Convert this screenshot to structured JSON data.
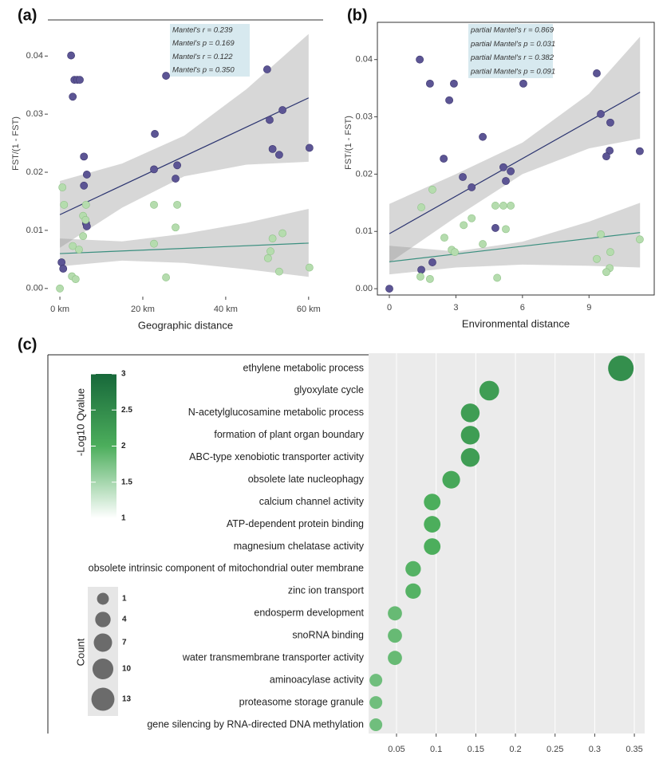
{
  "chart_data": [
    {
      "type": "scatter",
      "panel_label": "(a)",
      "x_label": "Geographic distance",
      "y_label": "FST/(1 - FST)",
      "xlim": [
        -2.9,
        63.5
      ],
      "ylim": [
        -0.0014,
        0.0458
      ],
      "xticks": [
        {
          "value": 0,
          "label": "0 km"
        },
        {
          "value": 20,
          "label": "20 km"
        },
        {
          "value": 40,
          "label": "40 km"
        },
        {
          "value": 60,
          "label": "60 km"
        }
      ],
      "yticks": [
        {
          "value": 0,
          "label": "0.00"
        },
        0.01,
        0.02,
        0.03,
        0.04
      ],
      "annotations": [
        {
          "text": "Mantel's r = 0.239",
          "color": "#2e3a6e"
        },
        {
          "text": "Mantel's p = 0.169",
          "color": "#2e3a6e"
        },
        {
          "text": "Mantel's r = 0.122",
          "color": "#5fae8a"
        },
        {
          "text": "Mantel's p = 0.350",
          "color": "#5fae8a"
        }
      ],
      "series": [
        {
          "color": "#5c5594",
          "x": [
            2.7,
            3.5,
            4.2,
            4.8,
            3.1,
            5.8,
            6.5,
            5.8,
            6.3,
            6.5,
            0.4,
            0.8,
            25.6,
            22.9,
            22.7,
            28.3,
            27.9,
            50,
            50.6,
            51.3,
            52.9,
            53.7,
            60.2
          ],
          "values": [
            0.0401,
            0.0359,
            0.0359,
            0.0359,
            0.033,
            0.0227,
            0.0196,
            0.0177,
            0.0112,
            0.0107,
            0.0045,
            0.0034,
            0.0366,
            0.0266,
            0.0205,
            0.0212,
            0.0189,
            0.0377,
            0.029,
            0.024,
            0.023,
            0.0307,
            0.0242
          ],
          "fit": {
            "color": "#2b3470",
            "x": [
              0,
              60
            ],
            "values": [
              0.0127,
              0.0328
            ]
          },
          "band": {
            "x": [
              0,
              15,
              30,
              45,
              60
            ],
            "lower": [
              0.007,
              0.0139,
              0.0193,
              0.0213,
              0.0218
            ],
            "upper": [
              0.0185,
              0.0215,
              0.0263,
              0.0343,
              0.0438
            ]
          }
        },
        {
          "color": "#b5dcae",
          "x": [
            0.6,
            1,
            0,
            3.1,
            2.9,
            3.8,
            4.6,
            5.6,
            6.2,
            5.6,
            6.3,
            22.7,
            22.7,
            25.6,
            27.9,
            28.3,
            50.2,
            50.8,
            51.3,
            52.9,
            53.7,
            60.2
          ],
          "values": [
            0.0174,
            0.0144,
            0,
            0.0073,
            0.0021,
            0.0016,
            0.0067,
            0.0125,
            0.0118,
            0.009,
            0.0144,
            0.0144,
            0.0077,
            0.0019,
            0.0105,
            0.0144,
            0.0052,
            0.0064,
            0.0086,
            0.0029,
            0.0095,
            0.0036
          ],
          "fit": {
            "color": "#3a8f7f",
            "x": [
              0,
              60
            ],
            "values": [
              0.006,
              0.0078
            ]
          },
          "band": {
            "x": [
              0,
              15,
              30,
              45,
              60
            ],
            "lower": [
              0.0038,
              0.0048,
              0.0044,
              0.0033,
              0.002
            ],
            "upper": [
              0.0086,
              0.0081,
              0.0094,
              0.0113,
              0.0137
            ]
          }
        }
      ]
    },
    {
      "type": "scatter",
      "panel_label": "(b)",
      "x_label": "Environmental distance",
      "y_label": "FST/(1 - FST)",
      "xlim": [
        -0.54,
        11.94
      ],
      "ylim": [
        -0.0011,
        0.0465
      ],
      "xticks": [
        0,
        3,
        6,
        9
      ],
      "yticks": [
        {
          "value": 0,
          "label": "0.00"
        },
        0.01,
        0.02,
        0.03,
        0.04
      ],
      "annotations": [
        {
          "text": "partial Mantel's r = 0.869",
          "color": "#2e3a6e"
        },
        {
          "text": "partial Mantel's p = 0.031",
          "color": "#2e3a6e"
        },
        {
          "text": "partial Mantel's r = 0.382",
          "color": "#5fae8a"
        },
        {
          "text": "partial Mantel's p = 0.091",
          "color": "#5fae8a"
        }
      ],
      "series": [
        {
          "color": "#5c5594",
          "x": [
            0,
            1.37,
            1.83,
            2.91,
            2.7,
            2.45,
            1.44,
            1.94,
            3.31,
            3.71,
            4.21,
            4.78,
            5.14,
            5.47,
            5.25,
            6.04,
            9.35,
            9.53,
            9.96,
            9.93,
            9.78,
            11.29
          ],
          "values": [
            0,
            0.04,
            0.0358,
            0.0358,
            0.0329,
            0.0227,
            0.0033,
            0.0046,
            0.0195,
            0.0177,
            0.0265,
            0.0106,
            0.0212,
            0.0205,
            0.0188,
            0.0358,
            0.0376,
            0.0305,
            0.029,
            0.0241,
            0.0231,
            0.024
          ],
          "fit": {
            "color": "#2b3470",
            "x": [
              0,
              11.3
            ],
            "values": [
              0.0096,
              0.0343
            ]
          },
          "band": {
            "x": [
              0,
              3,
              6,
              9,
              11.3
            ],
            "lower": [
              0.0045,
              0.0125,
              0.02,
              0.0245,
              0.0262
            ],
            "upper": [
              0.0148,
              0.02,
              0.0255,
              0.034,
              0.044
            ]
          }
        },
        {
          "color": "#b5dcae",
          "x": [
            1.94,
            1.44,
            1.4,
            1.83,
            2.48,
            2.81,
            2.95,
            3.35,
            3.71,
            4.21,
            4.78,
            4.86,
            5.14,
            5.47,
            5.25,
            9.35,
            9.53,
            9.96,
            9.93,
            9.78,
            11.29
          ],
          "values": [
            0.0173,
            0.0142,
            0.0021,
            0.0017,
            0.0089,
            0.0068,
            0.0064,
            0.0111,
            0.0123,
            0.0078,
            0.0145,
            0.0019,
            0.0145,
            0.0145,
            0.0104,
            0.0052,
            0.0095,
            0.0064,
            0.0036,
            0.0029,
            0.0086
          ],
          "fit": {
            "color": "#3a8f7f",
            "x": [
              0,
              11.3
            ],
            "values": [
              0.0047,
              0.0098
            ]
          },
          "band": {
            "x": [
              0,
              3,
              6,
              9,
              11.3
            ],
            "lower": [
              0.0025,
              0.0037,
              0.0042,
              0.004,
              0.0037
            ],
            "upper": [
              0.0075,
              0.0065,
              0.0082,
              0.0117,
              0.015
            ]
          }
        }
      ]
    },
    {
      "type": "dot",
      "panel_label": "(c)",
      "categories": [
        "ethylene metabolic process",
        "glyoxylate cycle",
        "N-acetylglucosamine metabolic process",
        "formation of plant organ boundary",
        "ABC-type xenobiotic transporter activity",
        "obsolete late nucleophagy",
        "calcium channel activity",
        "ATP-dependent protein binding",
        "magnesium chelatase activity",
        "obsolete intrinsic component of mitochondrial outer membrane",
        "zinc ion transport",
        "endosperm development",
        "snoRNA binding",
        "water transmembrane transporter activity",
        "aminoacylase activity",
        "proteasome storage granule",
        "gene silencing by RNA-directed DNA methylation"
      ],
      "values": [
        0.333,
        0.167,
        0.143,
        0.143,
        0.143,
        0.119,
        0.095,
        0.095,
        0.095,
        0.071,
        0.071,
        0.048,
        0.048,
        0.048,
        0.024,
        0.024,
        0.024
      ],
      "sizes": [
        14,
        7,
        6,
        6,
        6,
        5,
        4,
        4,
        4,
        3,
        3,
        2,
        2,
        2,
        1,
        1,
        1
      ],
      "color_values": [
        2.45,
        2.25,
        2.25,
        2.25,
        2.25,
        2.1,
        2.0,
        2.0,
        2.0,
        1.95,
        1.95,
        1.85,
        1.85,
        1.85,
        1.8,
        1.8,
        1.8
      ],
      "xlim": [
        0.0148,
        0.363
      ],
      "xticks": [
        0.05,
        0.1,
        0.15,
        0.2,
        0.25,
        0.3,
        0.35
      ],
      "color_legend": {
        "title": "-Log10 Qvalue",
        "lim": [
          1,
          3
        ],
        "colors": [
          "#ffffff",
          "#4cae5c",
          "#17683a"
        ],
        "ticks": [
          1,
          1.5,
          2,
          2.5,
          3
        ]
      },
      "size_legend": {
        "title": "Count",
        "color": "#6b6b6b",
        "ticks": [
          1,
          4,
          7,
          10,
          13
        ]
      }
    }
  ]
}
